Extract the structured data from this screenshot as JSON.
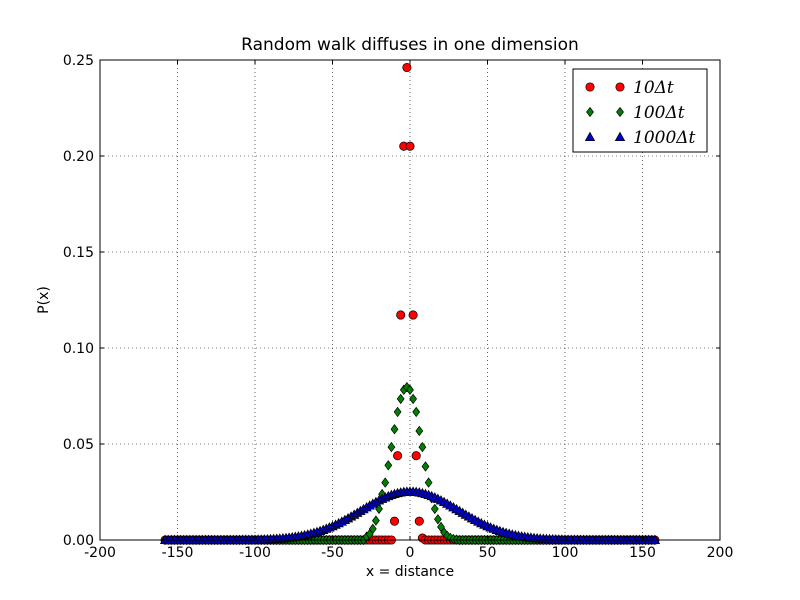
{
  "chart_data": {
    "type": "scatter",
    "title": "Random walk diffuses in one dimension",
    "xlabel": "x = distance",
    "ylabel": "P(x)",
    "xlim": [
      -200,
      200
    ],
    "ylim": [
      0,
      0.25
    ],
    "x_ticks": [
      "-200",
      "-150",
      "-100",
      "-50",
      "0",
      "50",
      "100",
      "150",
      "200"
    ],
    "y_ticks": [
      "0.00",
      "0.05",
      "0.10",
      "0.15",
      "0.20",
      "0.25"
    ],
    "grid": true,
    "legend_position": "top-right",
    "x_range_points": [
      -158,
      158
    ],
    "series": [
      {
        "name": "10Δt",
        "marker": "circle",
        "color": "#ff0000",
        "x": [
          -10,
          -8,
          -6,
          -4,
          -2,
          0,
          2,
          4,
          6,
          8,
          10,
          12,
          14,
          16,
          18,
          20,
          22,
          24,
          26,
          28
        ],
        "y": [
          0.0098,
          0.0439,
          0.1172,
          0.2051,
          0.2461,
          0.2051,
          0.1172,
          0.0439,
          0.0098,
          0.001,
          0,
          0,
          0,
          0,
          0,
          0,
          0,
          0,
          0,
          0
        ],
        "note_x_offset": 0
      },
      {
        "name": "100Δt",
        "marker": "diamond",
        "color": "#008000",
        "x": [
          -28,
          -26,
          -24,
          -22,
          -20,
          -18,
          -16,
          -14,
          -12,
          -10,
          -8,
          -6,
          -4,
          -2,
          0,
          2,
          4,
          6,
          8,
          10,
          12,
          14,
          16,
          18,
          20,
          22,
          24,
          26,
          28,
          30
        ],
        "y": [
          0.0017,
          0.0031,
          0.0058,
          0.0101,
          0.0162,
          0.0239,
          0.0299,
          0.0389,
          0.0484,
          0.0577,
          0.0667,
          0.0735,
          0.0782,
          0.0796,
          0.0782,
          0.0735,
          0.0667,
          0.0568,
          0.0484,
          0.0383,
          0.0299,
          0.0218,
          0.0162,
          0.0108,
          0.0068,
          0.0039,
          0.0022,
          0.0011,
          0.0005,
          0.0002
        ]
      },
      {
        "name": "1000Δt",
        "marker": "triangle",
        "color": "#0000cc",
        "sigma": 31.6,
        "peak": 0.0252
      }
    ]
  }
}
